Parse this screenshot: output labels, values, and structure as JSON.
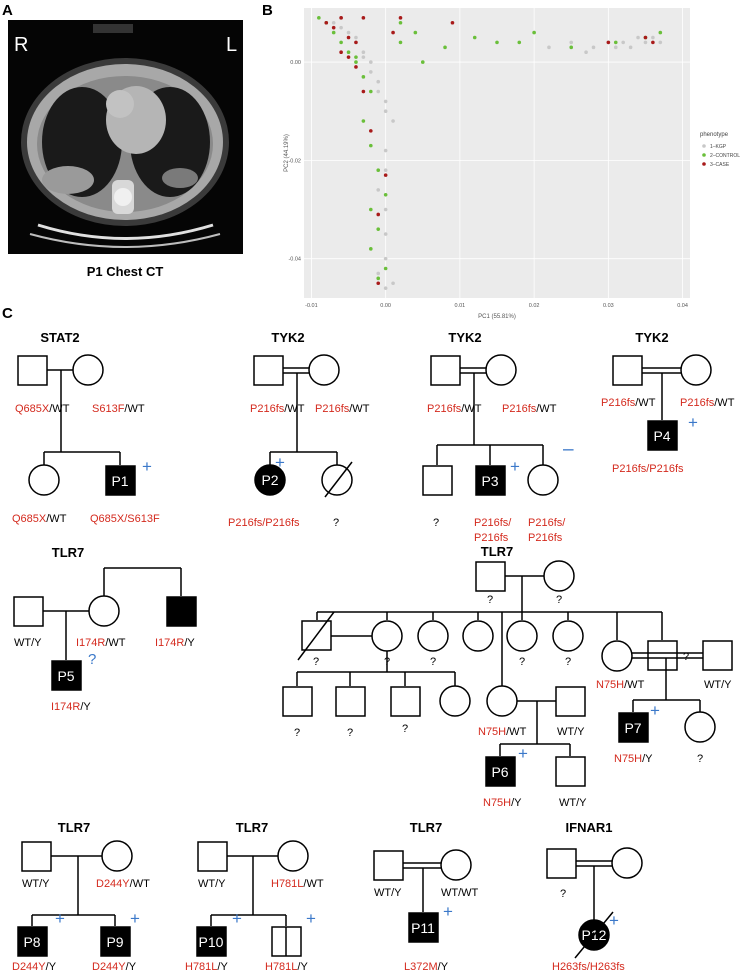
{
  "panels": {
    "a": "A",
    "b": "B",
    "c": "C"
  },
  "ct": {
    "left_label": "R",
    "right_label": "L",
    "caption": "P1 Chest CT"
  },
  "pca": {
    "xlabel": "PC1 (55.81%)",
    "ylabel": "PC2 (44.19%)",
    "xticks": [
      "-0.01",
      "0.00",
      "0.01",
      "0.02",
      "0.03",
      "0.04"
    ],
    "yticks": [
      "0.00",
      "-0.02",
      "-0.04"
    ],
    "legend_title": "phenotype",
    "legend_items": [
      "1–KGP",
      "2–CONTROL",
      "3–CASE"
    ]
  },
  "chart_data": {
    "type": "scatter",
    "xlabel": "PC1 (55.81%)",
    "ylabel": "PC2 (44.19%)",
    "xlim": [
      -0.011,
      0.041
    ],
    "ylim": [
      -0.048,
      0.011
    ],
    "grid": true,
    "legend": "right",
    "series": [
      {
        "name": "1–KGP",
        "color": "#c8c8c8",
        "x": [
          -0.007,
          -0.006,
          -0.005,
          -0.004,
          -0.003,
          -0.002,
          -0.001,
          0.0,
          0.001,
          -0.006,
          -0.004,
          -0.003,
          -0.002,
          -0.001,
          0.0,
          0.0,
          0.0,
          -0.001,
          0.0,
          0.0,
          0.0,
          -0.001,
          0.001,
          0.0,
          0.022,
          0.025,
          0.028,
          0.03,
          0.032,
          0.034,
          0.036,
          0.037,
          0.027,
          0.031,
          0.033,
          0.035
        ],
        "y": [
          0.008,
          0.007,
          0.006,
          0.004,
          0.002,
          0.0,
          -0.004,
          -0.008,
          -0.012,
          0.009,
          0.005,
          0.001,
          -0.002,
          -0.006,
          -0.01,
          -0.018,
          -0.022,
          -0.026,
          -0.03,
          -0.035,
          -0.04,
          -0.043,
          -0.045,
          -0.046,
          0.003,
          0.004,
          0.003,
          0.004,
          0.004,
          0.005,
          0.005,
          0.004,
          0.002,
          0.003,
          0.003,
          0.004
        ]
      },
      {
        "name": "2–CONTROL",
        "color": "#6abf3a",
        "x": [
          -0.009,
          -0.008,
          -0.007,
          -0.006,
          -0.005,
          -0.004,
          -0.003,
          -0.002,
          0.002,
          0.004,
          0.008,
          0.012,
          0.015,
          0.02,
          -0.003,
          -0.002,
          -0.001,
          0.0,
          -0.002,
          -0.001,
          -0.002,
          0.0,
          -0.001,
          0.002,
          0.031,
          0.035,
          0.037,
          0.025,
          -0.004,
          0.005,
          0.018
        ],
        "y": [
          0.009,
          0.008,
          0.006,
          0.004,
          0.002,
          0.001,
          -0.003,
          -0.006,
          0.004,
          0.006,
          0.003,
          0.005,
          0.004,
          0.006,
          -0.012,
          -0.017,
          -0.022,
          -0.027,
          -0.03,
          -0.034,
          -0.038,
          -0.042,
          -0.044,
          0.008,
          0.004,
          0.005,
          0.006,
          0.003,
          0.0,
          0.0,
          0.004
        ]
      },
      {
        "name": "3–CASE",
        "color": "#a81a1a",
        "x": [
          -0.008,
          -0.007,
          -0.006,
          -0.005,
          -0.004,
          -0.006,
          -0.005,
          -0.004,
          -0.003,
          0.001,
          0.002,
          0.009,
          0.03,
          0.035,
          0.036,
          -0.002,
          0.0,
          -0.001,
          -0.003,
          -0.001
        ],
        "y": [
          0.008,
          0.007,
          0.009,
          0.005,
          0.004,
          0.002,
          0.001,
          -0.001,
          0.009,
          0.006,
          0.009,
          0.008,
          0.004,
          0.005,
          0.004,
          -0.014,
          -0.023,
          -0.031,
          -0.006,
          -0.045
        ]
      }
    ]
  },
  "pedigrees": {
    "stat2": {
      "gene": "STAT2",
      "father_mut": "Q685X",
      "father_suffix": "/WT",
      "mother_mut": "S613F",
      "mother_suffix": "/WT",
      "sib_mut": "Q685X",
      "sib_suffix": "/WT",
      "proband": "P1",
      "proband_geno": "Q685X/S613F",
      "status": "+"
    },
    "tyk2a": {
      "gene": "TYK2",
      "father_mut": "P216fs",
      "father_suffix": "/WT",
      "mother_mut": "P216fs",
      "mother_suffix": "/WT",
      "proband": "P2",
      "proband_geno": "P216fs/P216fs",
      "sib_geno": "?",
      "status": "+"
    },
    "tyk2b": {
      "gene": "TYK2",
      "father_mut": "P216fs",
      "father_suffix": "/WT",
      "mother_mut": "P216fs",
      "mother_suffix": "/WT",
      "sib1_geno": "?",
      "proband": "P3",
      "proband_geno_1": "P216fs/",
      "proband_geno_2": "P216fs",
      "sib2_geno_1": "P216fs/",
      "sib2_geno_2": "P216fs",
      "status": "+",
      "sib2_status": "–"
    },
    "tyk2c": {
      "gene": "TYK2",
      "father_mut": "P216fs",
      "father_suffix": "/WT",
      "mother_mut": "P216fs",
      "mother_suffix": "/WT",
      "proband": "P4",
      "proband_geno": "P216fs/P216fs",
      "status": "+"
    },
    "tlr7a": {
      "gene": "TLR7",
      "father_geno": "WT/Y",
      "mother_mut": "I174R",
      "mother_suffix": "/WT",
      "uncle_mut": "I174R",
      "uncle_suffix": "/Y",
      "proband": "P5",
      "proband_mut": "I174R",
      "proband_suffix": "/Y",
      "status": "?"
    },
    "tlr7b": {
      "gene": "TLR7",
      "q": "?",
      "mother_mut": "N75H",
      "mother_suffix": "/WT",
      "wt_y": "WT/Y",
      "p6": "P6",
      "p6_mut": "N75H",
      "p6_suffix": "/Y",
      "p7": "P7",
      "p7_mut": "N75H",
      "p7_suffix": "/Y",
      "status": "+"
    },
    "tlr7c": {
      "gene": "TLR7",
      "father_geno": "WT/Y",
      "mother_mut": "D244Y",
      "mother_suffix": "/WT",
      "p8": "P8",
      "p8_mut": "D244Y",
      "p8_suffix": "/Y",
      "p9": "P9",
      "p9_mut": "D244Y",
      "p9_suffix": "/Y",
      "status": "+"
    },
    "tlr7d": {
      "gene": "TLR7",
      "father_geno": "WT/Y",
      "mother_mut": "H781L",
      "mother_suffix": "/WT",
      "p10": "P10",
      "p10_mut": "H781L",
      "p10_suffix": "/Y",
      "sib_mut": "H781L",
      "sib_suffix": "/Y",
      "status": "+"
    },
    "tlr7e": {
      "gene": "TLR7",
      "father_geno": "WT/Y",
      "mother_geno": "WT/WT",
      "proband": "P11",
      "proband_mut": "L372M",
      "proband_suffix": "/Y",
      "status": "+"
    },
    "ifnar1": {
      "gene": "IFNAR1",
      "father_geno": "?",
      "proband": "P12",
      "proband_geno": "H263fs/H263fs",
      "status": "+"
    }
  },
  "colors": {
    "mutation": "#d42a1e",
    "status": "#3b78c9",
    "kgp": "#c8c8c8",
    "control": "#6abf3a",
    "case": "#a81a1a"
  }
}
